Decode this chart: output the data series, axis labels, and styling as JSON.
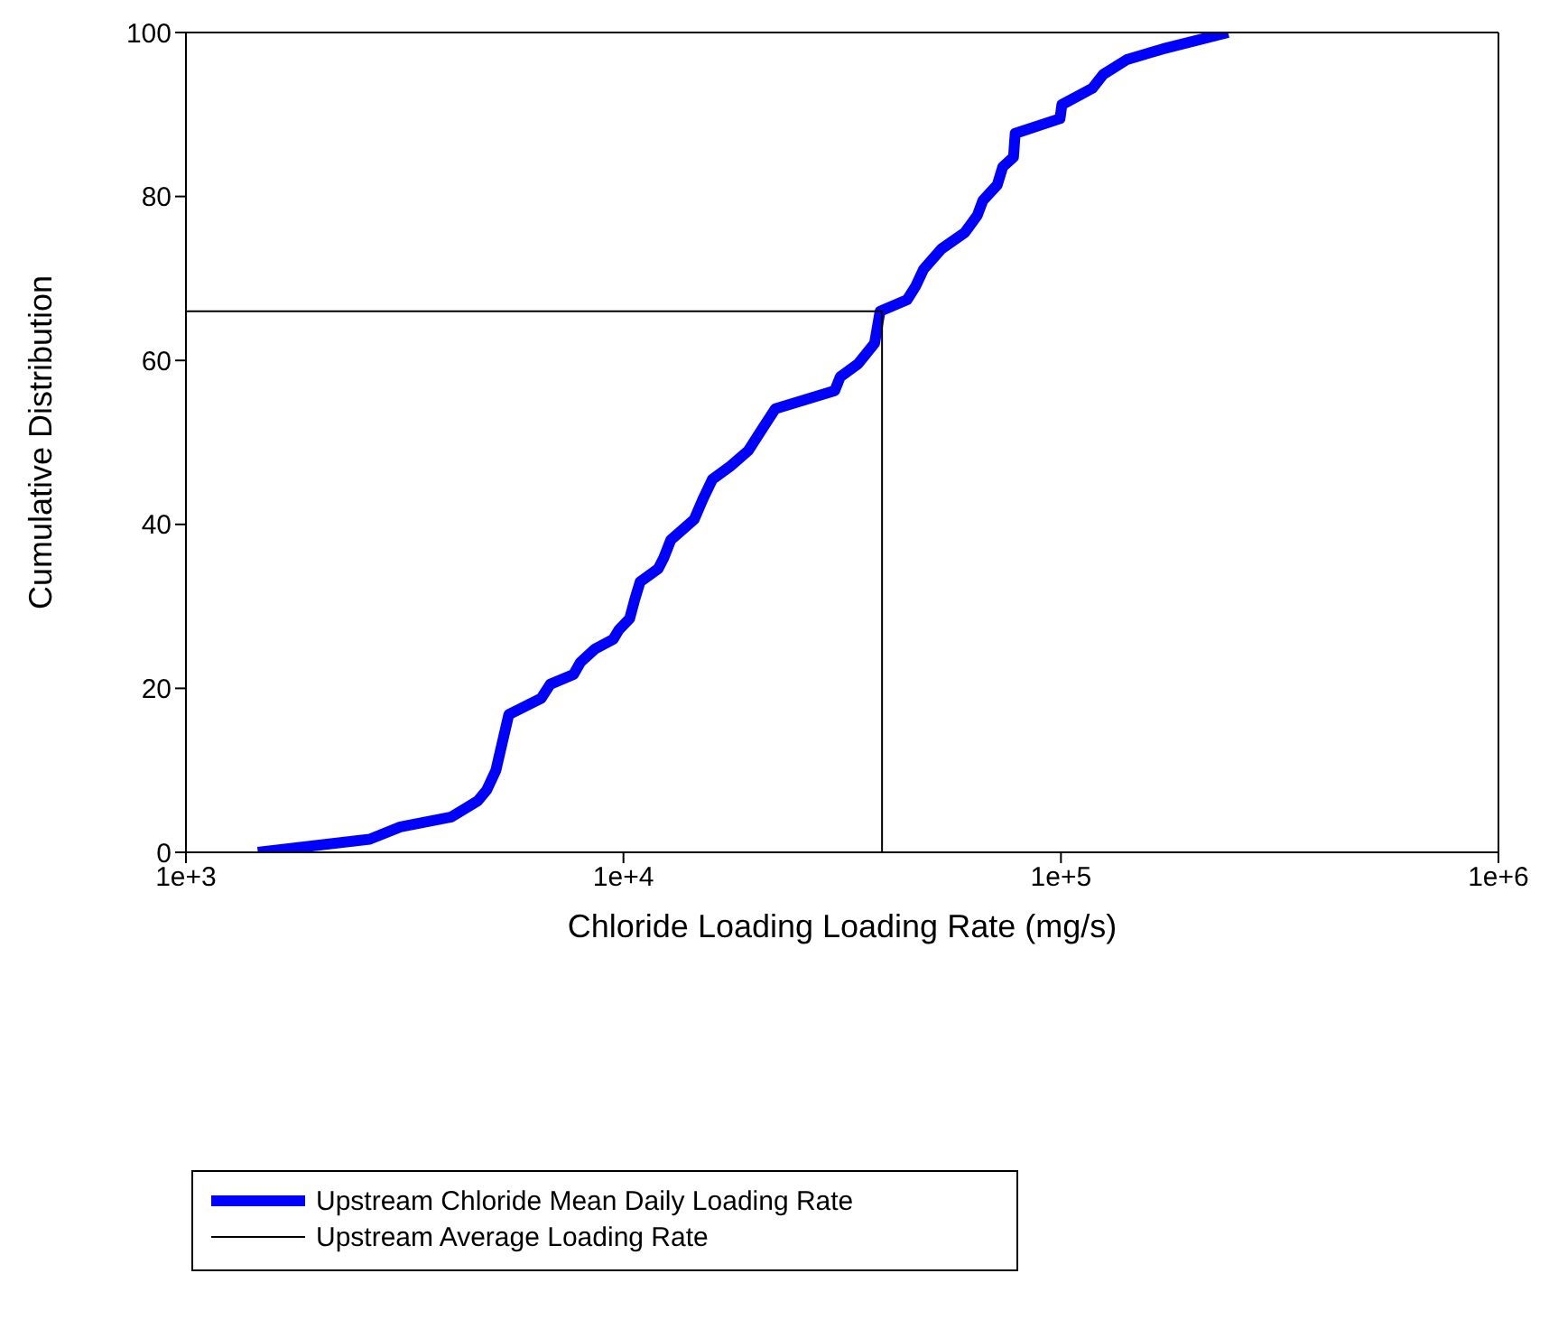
{
  "chart_data": {
    "type": "line",
    "xlabel": "Chloride Loading Loading Rate (mg/s)",
    "ylabel": "Cumulative Distribution",
    "log": "x",
    "xlim": [
      1000,
      1000000
    ],
    "xticks": [
      {
        "value": 1000,
        "label": "1e+3"
      },
      {
        "value": 10000,
        "label": "1e+4"
      },
      {
        "value": 100000,
        "label": "1e+5"
      },
      {
        "value": 1000000,
        "label": "1e+6"
      }
    ],
    "ylim": [
      0,
      100
    ],
    "yticks": [
      0,
      20,
      40,
      60,
      80,
      100
    ],
    "legend": "bottom",
    "marker": "none",
    "series": [
      {
        "name": "Upstream Chloride Mean Daily Loading Rate",
        "color": "#0000ff",
        "x": [
          1460,
          2630,
          3090,
          4040,
          4650,
          4870,
          5110,
          5260,
          5470,
          6490,
          6800,
          7690,
          7980,
          8610,
          9480,
          9750,
          10330,
          10620,
          10920,
          12010,
          12360,
          12830,
          14510,
          15230,
          15970,
          17550,
          19300,
          20620,
          22240,
          30400,
          31300,
          34400,
          37500,
          38600,
          44500,
          46600,
          48500,
          53300,
          60300,
          64400,
          66300,
          71500,
          73600,
          77900,
          78600,
          99500,
          100500,
          118000,
          125000,
          141500,
          171000,
          241000
        ],
        "values": [
          0,
          1.6,
          3.1,
          4.3,
          6.3,
          7.6,
          10,
          12.9,
          16.8,
          18.8,
          20.5,
          21.7,
          23.2,
          24.8,
          26,
          27.1,
          28.5,
          30.9,
          33,
          34.6,
          35.9,
          38.1,
          40.6,
          43.2,
          45.5,
          47.1,
          49,
          51.4,
          54.1,
          56.3,
          58,
          59.6,
          62.1,
          66,
          67.4,
          69.1,
          71.1,
          73.6,
          75.6,
          77.7,
          79.5,
          81.4,
          83.6,
          84.8,
          87.7,
          89.5,
          91.2,
          93.2,
          94.9,
          96.7,
          98,
          100
        ]
      },
      {
        "name": "Upstream Average Loading Rate",
        "color": "#000000",
        "x": [
          1000,
          39000,
          39000
        ],
        "values": [
          66,
          66,
          0
        ]
      }
    ]
  }
}
